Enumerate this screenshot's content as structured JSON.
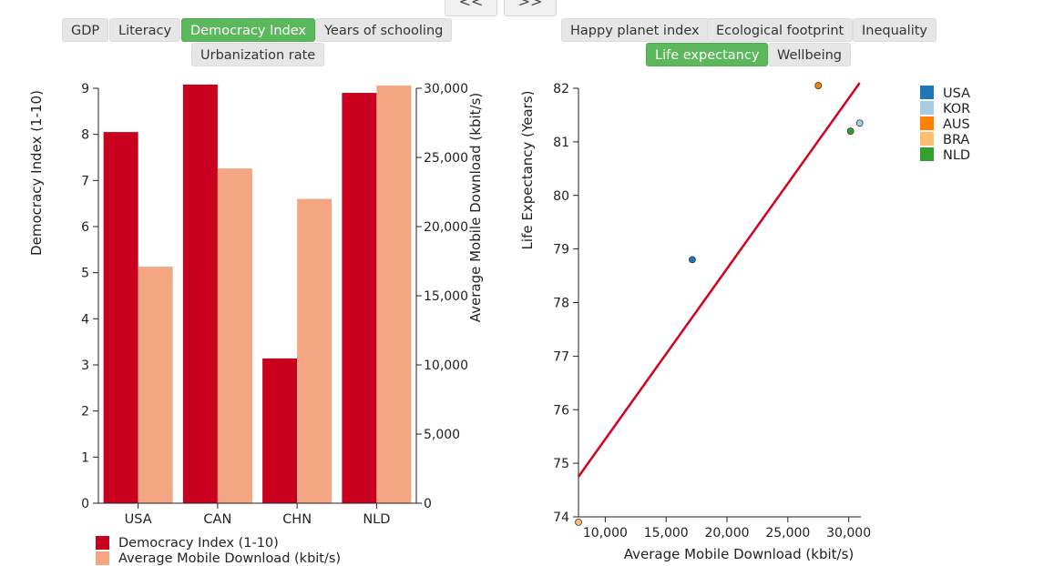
{
  "nav": {
    "prev_label": "<<",
    "next_label": ">>"
  },
  "left_tabs": [
    {
      "label": "GDP",
      "active": false
    },
    {
      "label": "Literacy",
      "active": false
    },
    {
      "label": "Democracy Index",
      "active": true
    },
    {
      "label": "Years of schooling",
      "active": false
    },
    {
      "label": "Urbanization rate",
      "active": false
    }
  ],
  "right_tabs": [
    {
      "label": "Happy planet index",
      "active": false
    },
    {
      "label": "Ecological footprint",
      "active": false
    },
    {
      "label": "Inequality",
      "active": false
    },
    {
      "label": "Life expectancy",
      "active": true
    },
    {
      "label": "Wellbeing",
      "active": false
    }
  ],
  "chart_data": [
    {
      "type": "bar",
      "categories": [
        "USA",
        "CAN",
        "CHN",
        "NLD"
      ],
      "series": [
        {
          "name": "Democracy Index (1-10)",
          "axis": "left",
          "color": "#c8001e",
          "values": [
            8.05,
            9.08,
            3.14,
            8.9
          ]
        },
        {
          "name": "Average Mobile Download (kbit/s)",
          "axis": "right",
          "color": "#f4a582",
          "values": [
            17100,
            24200,
            22000,
            30200
          ]
        }
      ],
      "ylabel": "Democracy Index (1-10)",
      "ylim": [
        0,
        9
      ],
      "yticks": [
        "0",
        "1",
        "2",
        "3",
        "4",
        "5",
        "6",
        "7",
        "8",
        "9"
      ],
      "y2label": "Average Mobile Download (kbit/s)",
      "y2lim": [
        0,
        30000
      ],
      "y2ticks": [
        "0",
        "5,000",
        "10,000",
        "15,000",
        "20,000",
        "25,000",
        "30,000"
      ],
      "legend": "bottom-left"
    },
    {
      "type": "scatter",
      "xlabel": "Average Mobile Download (kbit/s)",
      "ylabel": "Life Expectancy (Years)",
      "xlim": [
        7800,
        31000
      ],
      "ylim": [
        74,
        82
      ],
      "xticks": [
        "10,000",
        "15,000",
        "20,000",
        "25,000",
        "30,000"
      ],
      "yticks": [
        "74",
        "75",
        "76",
        "77",
        "78",
        "79",
        "80",
        "81",
        "82"
      ],
      "series": [
        {
          "name": "USA",
          "color": "#1f78b4",
          "x": 17150,
          "y": 78.8
        },
        {
          "name": "KOR",
          "color": "#a6cee3",
          "x": 30900,
          "y": 81.35
        },
        {
          "name": "AUS",
          "color": "#ff7f00",
          "x": 27500,
          "y": 82.05
        },
        {
          "name": "BRA",
          "color": "#fdbf6f",
          "x": 7800,
          "y": 73.9
        },
        {
          "name": "NLD",
          "color": "#33a02c",
          "x": 30150,
          "y": 81.2
        }
      ],
      "trendline": {
        "color": "#d6001c",
        "x": [
          7800,
          30900
        ],
        "y": [
          74.75,
          82.1
        ]
      },
      "legend": "top-right"
    }
  ]
}
